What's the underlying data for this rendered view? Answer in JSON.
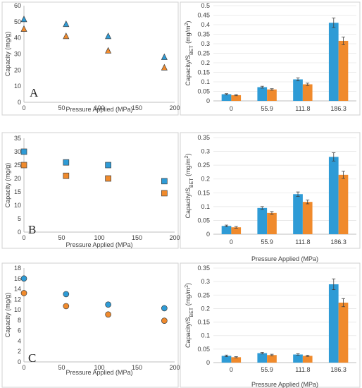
{
  "colors": {
    "blue": "#2e9bd6",
    "orange": "#f08a2c",
    "edge": "#404040",
    "errbar": "#404040"
  },
  "chart_data": [
    {
      "type": "scatter",
      "panel_label": "A",
      "marker": "triangle",
      "xlabel": "Pressure Applied (MPa)",
      "ylabel": "Capacity (mg/g)",
      "xlim": [
        0,
        200
      ],
      "ylim": [
        0,
        60
      ],
      "xticks": [
        0,
        50,
        100,
        150,
        200
      ],
      "yticks": [
        0,
        10,
        20,
        30,
        40,
        50,
        60
      ],
      "series": [
        {
          "x": [
            0,
            55.9,
            111.8,
            186.3
          ],
          "y": [
            51.5,
            48.5,
            41,
            28
          ],
          "color": "#2e9bd6"
        },
        {
          "x": [
            0,
            55.9,
            111.8,
            186.3
          ],
          "y": [
            45.5,
            41,
            32,
            21.5
          ],
          "color": "#f08a2c"
        }
      ]
    },
    {
      "type": "bar",
      "ylabel_parts": [
        "Capacity/S",
        "BET",
        " (mg/m",
        "2",
        ")"
      ],
      "xlabel": "",
      "categories": [
        "0",
        "55.9",
        "111.8",
        "186.3"
      ],
      "ylim": [
        0,
        0.5
      ],
      "yticks": [
        "0",
        "0.05",
        "0.1",
        "0.15",
        "0.2",
        "0.25",
        "0.3",
        "0.35",
        "0.4",
        "0.45",
        "0.5"
      ],
      "series": [
        {
          "values": [
            0.035,
            0.072,
            0.113,
            0.41
          ],
          "errors": [
            0.003,
            0.005,
            0.008,
            0.025
          ],
          "color": "#2e9bd6"
        },
        {
          "values": [
            0.03,
            0.06,
            0.087,
            0.315
          ],
          "errors": [
            0.003,
            0.004,
            0.006,
            0.02
          ],
          "color": "#f08a2c"
        }
      ]
    },
    {
      "type": "scatter",
      "panel_label": "B",
      "marker": "square",
      "xlabel": "Pressure Applied (MPa)",
      "ylabel": "Capacity (mg/g)",
      "xlim": [
        0,
        200
      ],
      "ylim": [
        0,
        35
      ],
      "xticks": [
        0,
        50,
        100,
        150,
        200
      ],
      "yticks": [
        0,
        5,
        10,
        15,
        20,
        25,
        30,
        35
      ],
      "series": [
        {
          "x": [
            0,
            55.9,
            111.8,
            186.3
          ],
          "y": [
            30,
            26,
            25,
            19
          ],
          "color": "#2e9bd6"
        },
        {
          "x": [
            0,
            55.9,
            111.8,
            186.3
          ],
          "y": [
            25,
            21,
            20,
            14.5
          ],
          "color": "#f08a2c"
        }
      ]
    },
    {
      "type": "bar",
      "ylabel_parts": [
        "Capacity/S",
        "BET",
        " (mg/m",
        "2",
        ")"
      ],
      "xlabel": "Pressure Applied (MPa)",
      "categories": [
        "0",
        "55.9",
        "111.8",
        "186.3"
      ],
      "ylim": [
        0,
        0.35
      ],
      "yticks": [
        "0",
        "0.05",
        "0.1",
        "0.15",
        "0.2",
        "0.25",
        "0.3",
        "0.35"
      ],
      "series": [
        {
          "values": [
            0.03,
            0.095,
            0.145,
            0.28
          ],
          "errors": [
            0.003,
            0.005,
            0.008,
            0.015
          ],
          "color": "#2e9bd6"
        },
        {
          "values": [
            0.025,
            0.077,
            0.117,
            0.215
          ],
          "errors": [
            0.003,
            0.005,
            0.007,
            0.013
          ],
          "color": "#f08a2c"
        }
      ]
    },
    {
      "type": "scatter",
      "panel_label": "C",
      "marker": "circle",
      "xlabel": "Pressure Applied (MPa)",
      "ylabel": "Capacity (mg/g)",
      "xlim": [
        0,
        200
      ],
      "ylim": [
        0,
        18
      ],
      "xticks": [
        0,
        50,
        100,
        150,
        200
      ],
      "yticks": [
        0,
        2,
        4,
        6,
        8,
        10,
        12,
        14,
        16,
        18
      ],
      "series": [
        {
          "x": [
            0,
            55.9,
            111.8,
            186.3
          ],
          "y": [
            16,
            13,
            11,
            10.3
          ],
          "color": "#2e9bd6"
        },
        {
          "x": [
            0,
            55.9,
            111.8,
            186.3
          ],
          "y": [
            13.2,
            10.7,
            9.1,
            7.9
          ],
          "color": "#f08a2c"
        }
      ]
    },
    {
      "type": "bar",
      "ylabel_parts": [
        "Capacity/S",
        "BET",
        " (mg/m",
        "2",
        ")"
      ],
      "xlabel": "Pressure Applied (MPa)",
      "categories": [
        "0",
        "55.9",
        "111.8",
        "186.3"
      ],
      "ylim": [
        0,
        0.35
      ],
      "yticks": [
        "0",
        "0.05",
        "0.1",
        "0.15",
        "0.2",
        "0.25",
        "0.3",
        "0.35"
      ],
      "series": [
        {
          "values": [
            0.025,
            0.035,
            0.03,
            0.29
          ],
          "errors": [
            0.003,
            0.003,
            0.003,
            0.02
          ],
          "color": "#2e9bd6"
        },
        {
          "values": [
            0.02,
            0.028,
            0.025,
            0.222
          ],
          "errors": [
            0.002,
            0.003,
            0.002,
            0.015
          ],
          "color": "#f08a2c"
        }
      ]
    }
  ]
}
